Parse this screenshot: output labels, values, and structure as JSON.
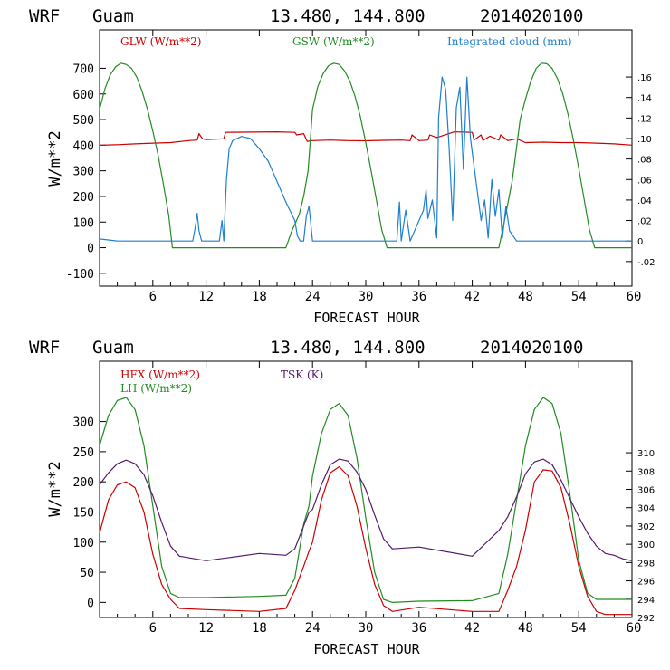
{
  "chart_data": [
    {
      "type": "line",
      "header": {
        "model": "WRF",
        "site": "Guam",
        "coords": "13.480, 144.800",
        "run": "2014020100"
      },
      "xlabel": "FORECAST HOUR",
      "ylabel": "W/m**2",
      "xlim": [
        0,
        60
      ],
      "ylim": [
        -150,
        850
      ],
      "xticks": [
        6,
        12,
        18,
        24,
        30,
        36,
        42,
        48,
        54,
        60
      ],
      "yticks": [
        -100,
        0,
        100,
        200,
        300,
        400,
        500,
        600,
        700
      ],
      "yticks_right": [
        -0.02,
        0,
        0.02,
        0.04,
        0.06,
        0.08,
        0.1,
        0.12,
        0.14,
        0.16
      ],
      "yticks_right_labels": [
        "-.02",
        "0",
        ".02",
        ".04",
        ".06",
        ".08",
        ".10",
        ".12",
        ".14",
        ".16"
      ],
      "y2lim": [
        -0.044,
        0.206
      ],
      "series": [
        {
          "name": "GLW (W/m**2)",
          "color": "#cc0000",
          "axis": "left",
          "x": [
            0,
            2,
            4,
            6,
            8,
            10,
            11,
            11.2,
            11.6,
            12,
            14,
            14.2,
            20,
            22,
            22.2,
            23,
            23.4,
            24,
            26,
            28,
            30,
            32,
            34,
            35,
            35.2,
            36,
            37,
            37.2,
            38,
            40,
            42,
            42.2,
            43,
            43.2,
            44,
            45,
            45.2,
            46,
            47,
            48,
            50,
            52,
            54,
            56,
            58,
            60
          ],
          "values": [
            400,
            402,
            405,
            408,
            410,
            418,
            420,
            445,
            425,
            422,
            425,
            450,
            452,
            450,
            440,
            445,
            415,
            418,
            420,
            418,
            417,
            419,
            420,
            418,
            440,
            418,
            420,
            440,
            430,
            452,
            450,
            420,
            440,
            418,
            435,
            420,
            440,
            418,
            425,
            410,
            412,
            410,
            410,
            408,
            405,
            400
          ]
        },
        {
          "name": "GSW (W/m**2)",
          "color": "#228b22",
          "axis": "left",
          "x": [
            0,
            0.6,
            1.2,
            1.8,
            2.4,
            3,
            3.6,
            4.2,
            4.8,
            5.4,
            6,
            6.6,
            7.2,
            7.8,
            8.2,
            9,
            21,
            21.6,
            22.5,
            23,
            23.5,
            24,
            24.6,
            25.2,
            25.8,
            26.4,
            27,
            27.6,
            28.2,
            28.8,
            29.4,
            30,
            30.6,
            31.2,
            31.8,
            32.4,
            33,
            45,
            45.6,
            46.5,
            47.4,
            48,
            48.6,
            49.2,
            49.8,
            50.4,
            51,
            51.6,
            52.2,
            52.8,
            53.4,
            54,
            54.6,
            55.2,
            55.8,
            56.4,
            57,
            60
          ],
          "values": [
            540,
            620,
            675,
            705,
            720,
            715,
            700,
            665,
            610,
            540,
            455,
            360,
            245,
            125,
            0,
            0,
            0,
            60,
            130,
            200,
            300,
            540,
            630,
            680,
            710,
            720,
            715,
            690,
            650,
            590,
            510,
            410,
            300,
            185,
            70,
            0,
            0,
            0,
            100,
            260,
            500,
            580,
            650,
            700,
            720,
            718,
            700,
            660,
            600,
            520,
            420,
            310,
            190,
            70,
            0,
            0,
            0,
            0
          ]
        },
        {
          "name": "Integrated cloud (mm)",
          "color": "#1e7fd0",
          "axis": "right",
          "x": [
            0,
            2,
            3,
            10.5,
            10.8,
            11,
            11.2,
            11.5,
            13.5,
            13.8,
            14,
            14.3,
            14.6,
            15,
            16,
            17,
            18,
            19,
            20,
            21,
            22,
            22.3,
            22.6,
            23,
            23.3,
            23.6,
            24,
            33.5,
            33.8,
            34,
            34.5,
            34.7,
            35,
            36.5,
            36.8,
            37,
            37.5,
            38,
            38.2,
            38.6,
            39,
            39.4,
            39.8,
            40.2,
            40.6,
            41,
            41.4,
            41.8,
            42.4,
            43,
            43.4,
            43.8,
            44.2,
            44.6,
            45,
            45.4,
            45.8,
            46.2,
            47,
            60
          ],
          "values": [
            0.002,
            0,
            0,
            0,
            0.014,
            0.027,
            0.01,
            0,
            0,
            0.02,
            0,
            0.06,
            0.09,
            0.098,
            0.102,
            0.1,
            0.09,
            0.078,
            0.058,
            0.038,
            0.02,
            0.005,
            0,
            0,
            0.024,
            0.034,
            0,
            0,
            0.038,
            0,
            0.03,
            0.018,
            0,
            0.03,
            0.05,
            0.022,
            0.04,
            0.003,
            0.12,
            0.16,
            0.148,
            0.09,
            0.02,
            0.13,
            0.15,
            0.07,
            0.16,
            0.1,
            0.06,
            0.02,
            0.04,
            0.003,
            0.06,
            0.024,
            0.05,
            0.003,
            0.034,
            0.01,
            0,
            0
          ]
        }
      ]
    },
    {
      "type": "line",
      "header": {
        "model": "WRF",
        "site": "Guam",
        "coords": "13.480, 144.800",
        "run": "2014020100"
      },
      "xlabel": "FORECAST HOUR",
      "ylabel": "W/m**2",
      "xlim": [
        0,
        60
      ],
      "ylim": [
        -25,
        400
      ],
      "xticks": [
        6,
        12,
        18,
        24,
        30,
        36,
        42,
        48,
        54,
        60
      ],
      "yticks": [
        0,
        50,
        100,
        150,
        200,
        250,
        300
      ],
      "y2lim": [
        292,
        320
      ],
      "yticks_right": [
        292,
        294,
        296,
        298,
        300,
        302,
        304,
        306,
        308,
        310
      ],
      "series": [
        {
          "name": "HFX (W/m**2)",
          "color": "#cc0000",
          "axis": "left",
          "x": [
            0,
            1,
            2,
            3,
            4,
            5,
            6,
            7,
            8,
            9,
            12,
            18,
            21,
            22,
            23,
            23.6,
            24,
            25,
            26,
            27,
            28,
            29,
            30,
            31,
            32,
            33,
            36,
            42,
            45,
            46,
            47,
            48,
            49,
            50,
            51,
            52,
            53,
            54,
            55,
            56,
            57,
            60
          ],
          "values": [
            115,
            170,
            195,
            200,
            190,
            150,
            80,
            30,
            5,
            -10,
            -12,
            -15,
            -10,
            20,
            60,
            85,
            100,
            170,
            215,
            225,
            210,
            160,
            90,
            30,
            -5,
            -15,
            -8,
            -15,
            -15,
            20,
            60,
            120,
            200,
            220,
            218,
            190,
            130,
            60,
            10,
            -15,
            -20,
            -20
          ]
        },
        {
          "name": "LH (W/m**2)",
          "color": "#228b22",
          "axis": "left",
          "x": [
            0,
            1,
            2,
            3,
            4,
            5,
            6,
            7,
            8,
            9,
            12,
            18,
            21,
            22,
            23,
            23.6,
            24,
            25,
            26,
            27,
            28,
            29,
            30,
            31,
            32,
            33,
            36,
            42,
            45,
            46,
            47,
            48,
            49,
            50,
            51,
            52,
            53,
            54,
            55,
            56,
            57,
            60
          ],
          "values": [
            260,
            310,
            335,
            340,
            320,
            260,
            160,
            60,
            15,
            8,
            8,
            10,
            12,
            40,
            130,
            160,
            210,
            280,
            320,
            330,
            310,
            240,
            140,
            50,
            5,
            0,
            2,
            3,
            15,
            80,
            170,
            260,
            320,
            340,
            330,
            280,
            180,
            70,
            15,
            5,
            5,
            5
          ]
        },
        {
          "name": "TSK (K)",
          "color": "#551a6b",
          "axis": "right",
          "x": [
            0,
            1,
            2,
            3,
            4,
            5,
            6,
            7,
            8,
            9,
            12,
            18,
            21,
            22,
            23,
            23.6,
            24,
            25,
            26,
            27,
            28,
            29,
            30,
            31,
            32,
            33,
            36,
            42,
            45,
            46,
            47,
            48,
            49,
            50,
            51,
            52,
            53,
            54,
            55,
            56,
            57,
            58,
            59,
            60
          ],
          "values": [
            306.5,
            307.8,
            308.8,
            309.2,
            308.8,
            307.6,
            305.3,
            302.4,
            299.8,
            298.7,
            298.2,
            299,
            298.8,
            299.5,
            302,
            303.5,
            303.8,
            306.5,
            308.7,
            309.3,
            309.1,
            307.9,
            306,
            303.2,
            300.6,
            299.5,
            299.7,
            298.7,
            301.5,
            303,
            305.2,
            307.7,
            309,
            309.3,
            308.7,
            307,
            305,
            303,
            301.2,
            299.8,
            299,
            298.8,
            298.4,
            298.2
          ]
        }
      ]
    }
  ]
}
